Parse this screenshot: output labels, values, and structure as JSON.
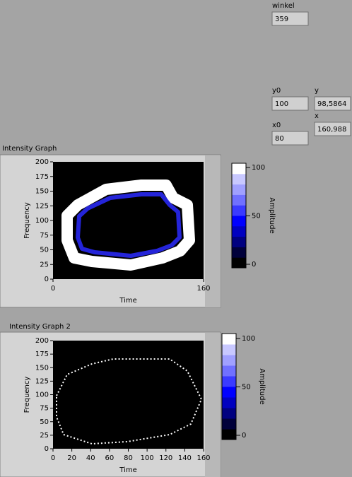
{
  "controls": [
    {
      "label": "winkel",
      "value": "359"
    },
    {
      "label": "y0",
      "value": "100"
    },
    {
      "label": "y",
      "value": "98,5864"
    },
    {
      "label": "x0",
      "value": "80"
    },
    {
      "label": "x",
      "value": "160,988"
    }
  ],
  "graphs": [
    {
      "title": "Intensity Graph",
      "xlabel": "Time",
      "ylabel": "Frequency",
      "xlim": [
        0,
        160
      ],
      "xticks": [
        0,
        160
      ],
      "ylim": [
        0,
        200
      ],
      "yticks": [
        0,
        25,
        50,
        75,
        100,
        125,
        150,
        175,
        200
      ],
      "colorbar_label": "Amplitude",
      "clim": [
        0,
        100
      ],
      "cticks": [
        0,
        50,
        100
      ]
    },
    {
      "title": "Intensity Graph 2",
      "xlabel": "Time",
      "ylabel": "Frequency",
      "xlim": [
        0,
        160
      ],
      "xticks": [
        0,
        20,
        40,
        60,
        80,
        100,
        120,
        140,
        160
      ],
      "ylim": [
        0,
        200
      ],
      "yticks": [
        0,
        25,
        50,
        75,
        100,
        125,
        150,
        175,
        200
      ],
      "colorbar_label": "Amplitude",
      "clim": [
        0,
        100
      ],
      "cticks": [
        0,
        50,
        100
      ]
    }
  ]
}
